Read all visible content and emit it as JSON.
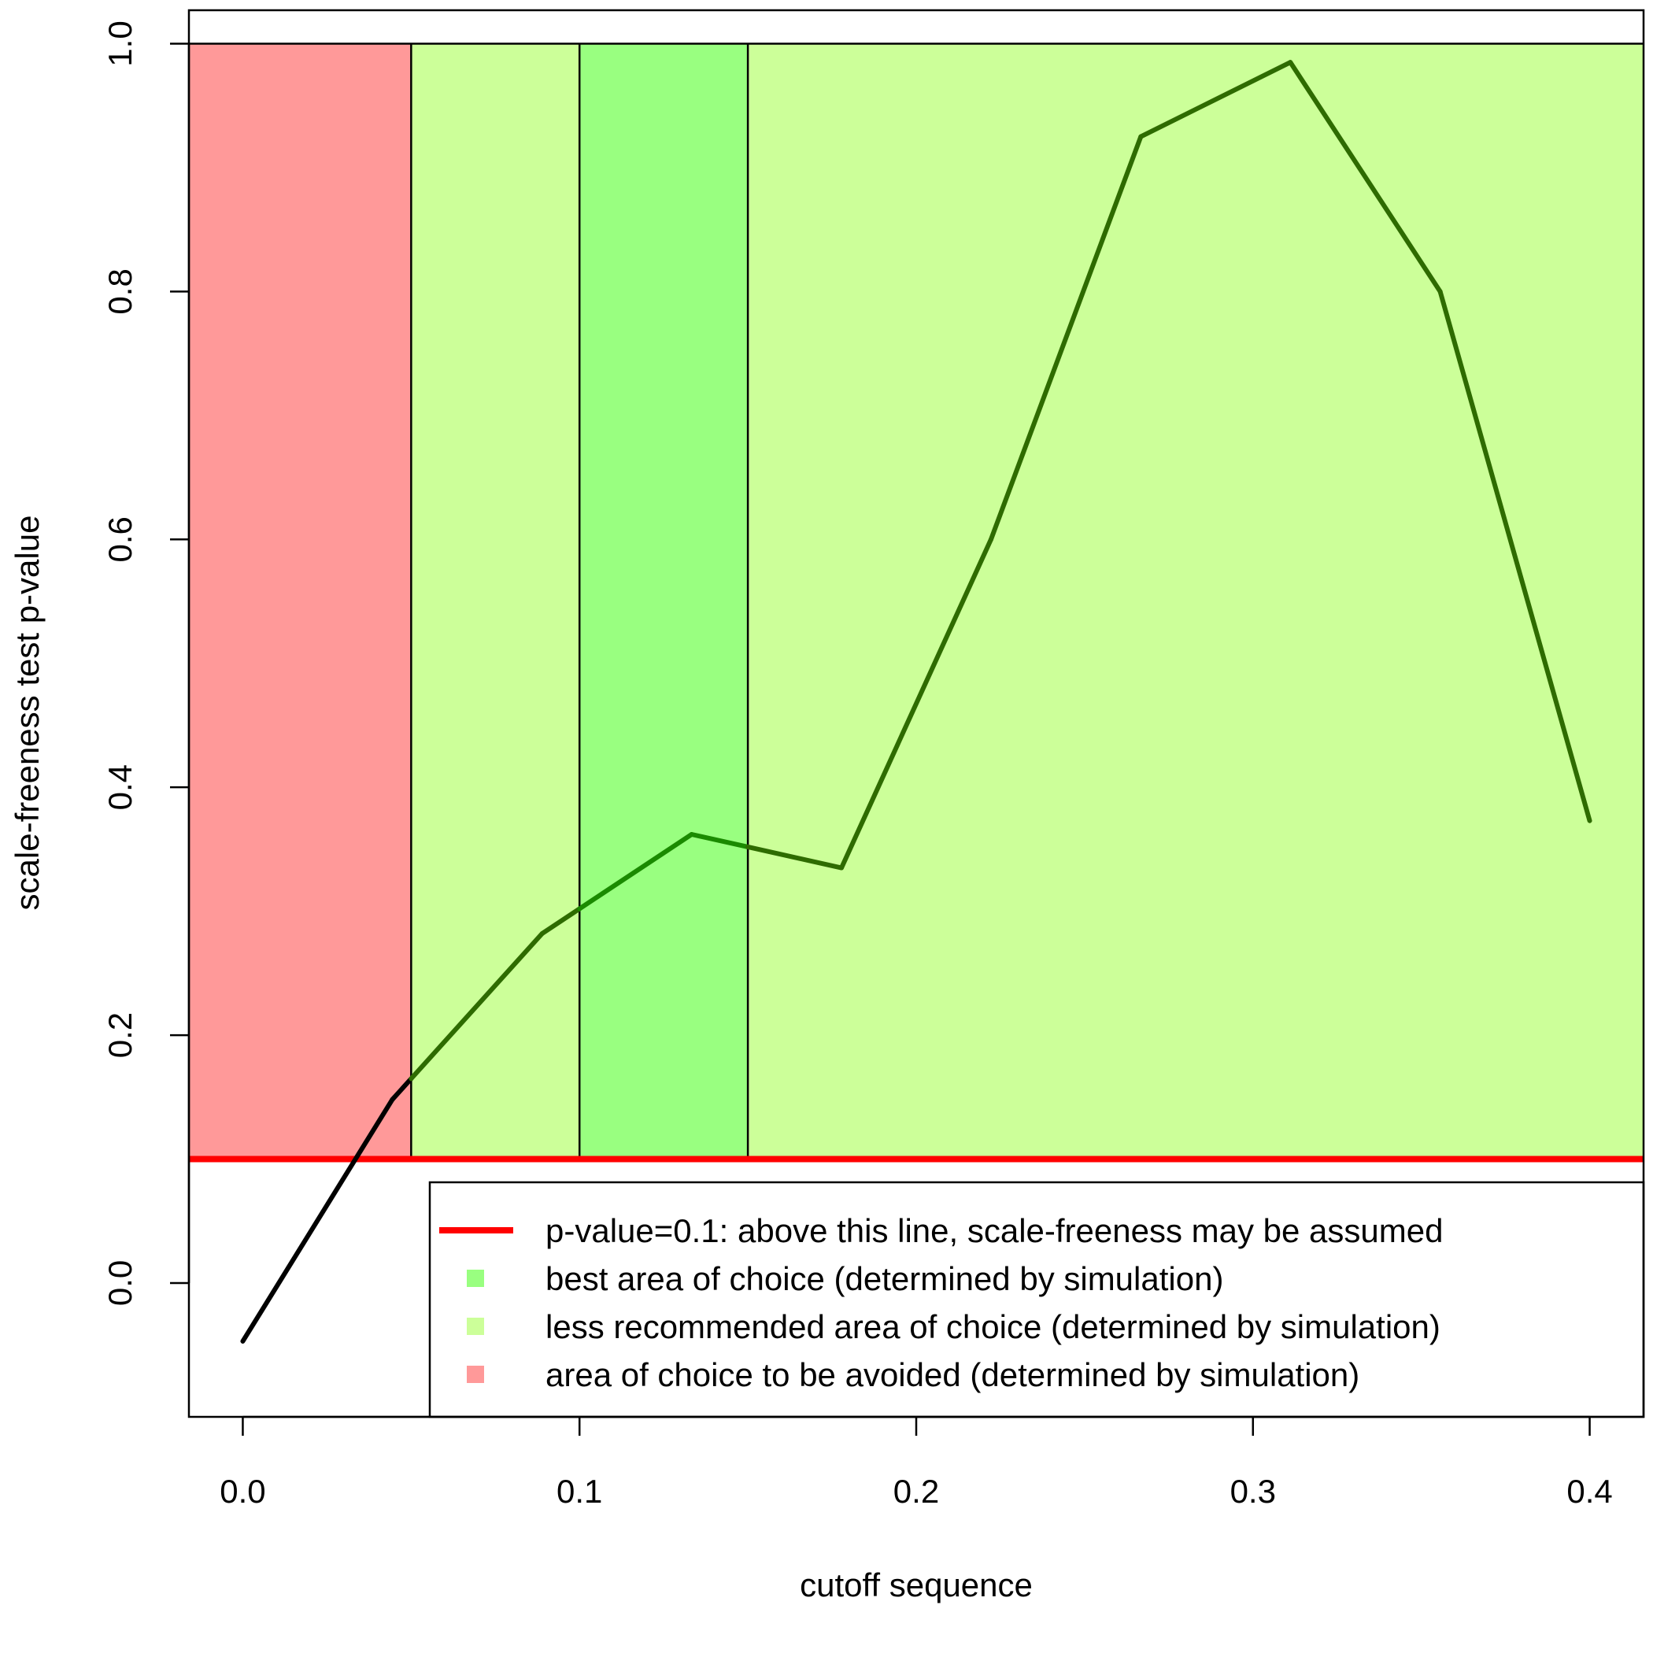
{
  "chart_data": {
    "type": "line",
    "xlabel": "cutoff sequence",
    "ylabel": "scale-freeness test p-value",
    "xlim": [
      -0.016,
      0.416
    ],
    "ylim": [
      -0.108,
      1.027
    ],
    "x_ticks": [
      0.0,
      0.1,
      0.2,
      0.3,
      0.4
    ],
    "x_tick_labels": [
      "0.0",
      "0.1",
      "0.2",
      "0.3",
      "0.4"
    ],
    "y_ticks": [
      0.0,
      0.2,
      0.4,
      0.6,
      0.8,
      1.0
    ],
    "y_tick_labels": [
      "0.0",
      "0.2",
      "0.4",
      "0.6",
      "0.8",
      "1.0"
    ],
    "grid": false,
    "series": [
      {
        "x": [
          0.0,
          0.0444,
          0.0889,
          0.1333,
          0.1778,
          0.2222,
          0.2667,
          0.3111,
          0.3556,
          0.4
        ],
        "values": [
          -0.047,
          0.148,
          0.282,
          0.362,
          0.335,
          0.6,
          0.925,
          0.985,
          0.8,
          0.373
        ],
        "color": "#000000"
      }
    ],
    "regions": [
      {
        "name": "area of choice to be avoided (determined by simulation)",
        "x_range": [
          -0.016,
          0.05
        ],
        "y_range": [
          0.1,
          1.0
        ],
        "color": "#FF9999"
      },
      {
        "name": "less recommended area of choice (determined by simulation)",
        "x_range": [
          0.05,
          0.1
        ],
        "y_range": [
          0.1,
          1.0
        ],
        "color": "#CCFF99"
      },
      {
        "name": "best area of choice (determined by simulation)",
        "x_range": [
          0.1,
          0.15
        ],
        "y_range": [
          0.1,
          1.0
        ],
        "color": "#99FF80"
      },
      {
        "name": "less recommended area of choice (determined by simulation)",
        "x_range": [
          0.15,
          0.416
        ],
        "y_range": [
          0.1,
          1.0
        ],
        "color": "#CCFF99"
      }
    ],
    "region_boundaries": [
      0.05,
      0.1,
      0.15
    ],
    "reference_lines": [
      {
        "orientation": "horizontal",
        "value": 0.1,
        "color": "#FF0000"
      },
      {
        "orientation": "horizontal",
        "value": 1.0,
        "color": "#000000"
      }
    ],
    "legend": {
      "placement": "bottom-right",
      "entries": [
        {
          "label": "p-value=0.1:  above this line, scale-freeness may be assumed",
          "symbol": "line",
          "color": "#FF0000"
        },
        {
          "label": "best area of choice (determined by simulation)",
          "symbol": "square",
          "color": "#99FF80"
        },
        {
          "label": "less recommended area of choice (determined by simulation)",
          "symbol": "square",
          "color": "#CCFF99"
        },
        {
          "label": "area of choice to be avoided (determined by simulation)",
          "symbol": "square",
          "color": "#FF9999"
        }
      ]
    }
  }
}
